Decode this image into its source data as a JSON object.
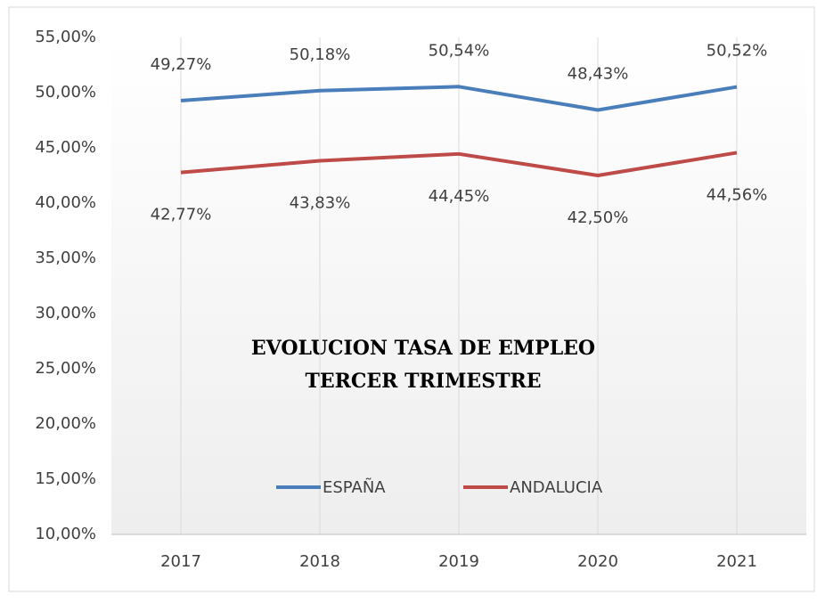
{
  "chart_data": {
    "type": "line",
    "title": [
      "EVOLUCION TASA DE EMPLEO",
      "TERCER TRIMESTRE"
    ],
    "categories": [
      "2017",
      "2018",
      "2019",
      "2020",
      "2021"
    ],
    "series": [
      {
        "name": "ESPAÑA",
        "color": "#4a7ebb",
        "values": [
          49.27,
          50.18,
          50.54,
          48.43,
          50.52
        ],
        "value_labels": [
          "49,27%",
          "50,18%",
          "50,54%",
          "48,43%",
          "50,52%"
        ]
      },
      {
        "name": "ANDALUCIA",
        "color": "#be4b48",
        "values": [
          42.77,
          43.83,
          44.45,
          42.5,
          44.56
        ],
        "value_labels": [
          "42,77%",
          "43,83%",
          "44,45%",
          "42,50%",
          "44,56%"
        ]
      }
    ],
    "ylim": [
      10,
      55
    ],
    "yticks": [
      {
        "value": 10,
        "label": "10,00%"
      },
      {
        "value": 15,
        "label": "15,00%"
      },
      {
        "value": 20,
        "label": "20,00%"
      },
      {
        "value": 25,
        "label": "25,00%"
      },
      {
        "value": 30,
        "label": "30,00%"
      },
      {
        "value": 35,
        "label": "35,00%"
      },
      {
        "value": 40,
        "label": "40,00%"
      },
      {
        "value": 45,
        "label": "45,00%"
      },
      {
        "value": 50,
        "label": "50,00%"
      },
      {
        "value": 55,
        "label": "55,00%"
      }
    ],
    "grid": "x",
    "legend": "bottom"
  }
}
